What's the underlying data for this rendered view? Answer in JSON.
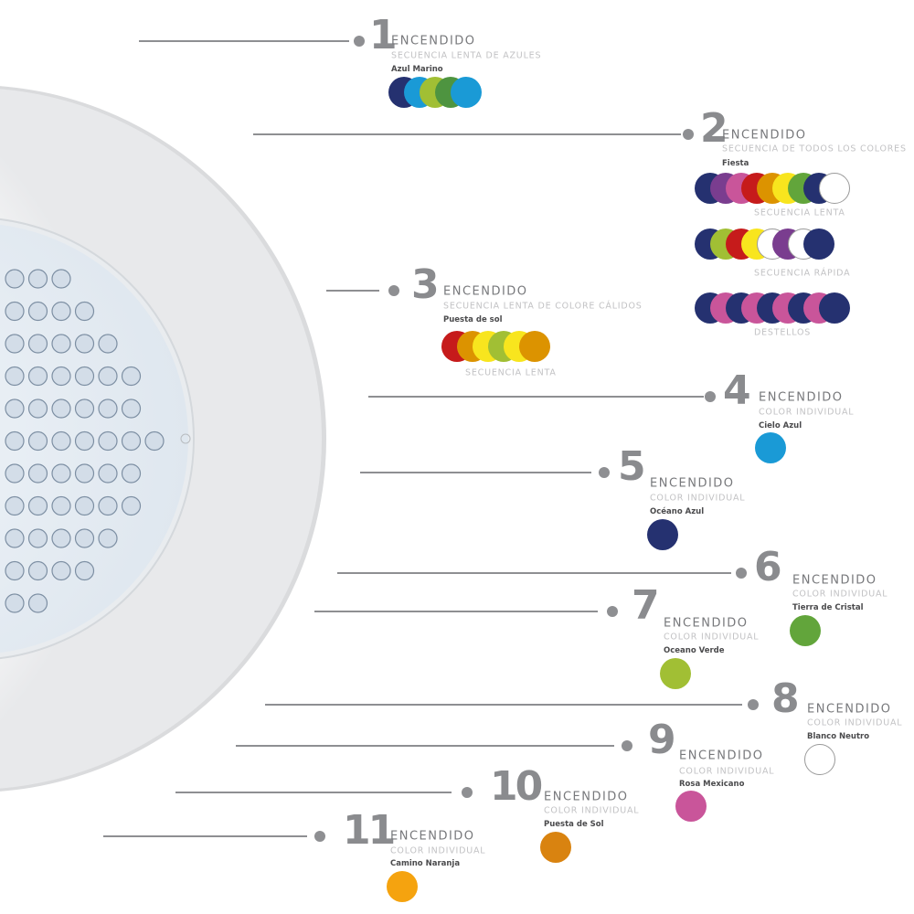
{
  "items": [
    {
      "number": "1",
      "title": "ENCENDIDO",
      "subtitle": "SECUENCIA LENTA DE AZULES",
      "name": "Azul Marino",
      "rows": [
        {
          "colors": [
            "#253170",
            "#1a9ad6",
            "#a1bf34",
            "#4e9440",
            "#1a9ad6"
          ],
          "label": ""
        }
      ]
    },
    {
      "number": "2",
      "title": "ENCENDIDO",
      "subtitle": "SECUENCIA DE TODOS LOS COLORES",
      "name": "Fiesta",
      "rows": [
        {
          "colors": [
            "#253170",
            "#7a3d8f",
            "#c9559a",
            "#c61b1b",
            "#dc9300",
            "#f8e51e",
            "#62a53b",
            "#253170",
            "#ffffff"
          ],
          "label": "SECUENCIA LENTA"
        },
        {
          "colors": [
            "#253170",
            "#a1bf34",
            "#c61b1b",
            "#f8e51e",
            "#ffffff",
            "#7a3d8f",
            "#ffffff",
            "#253170"
          ],
          "label": "SECUENCIA RÁPIDA"
        },
        {
          "colors": [
            "#253170",
            "#c9559a",
            "#253170",
            "#c9559a",
            "#253170",
            "#c9559a",
            "#253170",
            "#c9559a",
            "#253170"
          ],
          "label": "DESTELLOS"
        }
      ]
    },
    {
      "number": "3",
      "title": "ENCENDIDO",
      "subtitle": "SECUENCIA LENTA DE COLORE CÁLIDOS",
      "name": "Puesta de sol",
      "rows": [
        {
          "colors": [
            "#c61b1b",
            "#dc9300",
            "#f8e51e",
            "#a1bf34",
            "#f8e51e",
            "#dc9300"
          ],
          "label": "SECUENCIA LENTA"
        }
      ]
    },
    {
      "number": "4",
      "title": "ENCENDIDO",
      "subtitle": "COLOR INDIVIDUAL",
      "name": "Cielo Azul",
      "rows": [
        {
          "colors": [
            "#1a9ad6"
          ],
          "label": ""
        }
      ]
    },
    {
      "number": "5",
      "title": "ENCENDIDO",
      "subtitle": "COLOR INDIVIDUAL",
      "name": "Océano Azul",
      "rows": [
        {
          "colors": [
            "#253170"
          ],
          "label": ""
        }
      ]
    },
    {
      "number": "6",
      "title": "ENCENDIDO",
      "subtitle": "COLOR INDIVIDUAL",
      "name": "Tierra de Cristal",
      "rows": [
        {
          "colors": [
            "#62a53b"
          ],
          "label": ""
        }
      ]
    },
    {
      "number": "7",
      "title": "ENCENDIDO",
      "subtitle": "COLOR INDIVIDUAL",
      "name": "Oceano Verde",
      "rows": [
        {
          "colors": [
            "#a1bf34"
          ],
          "label": ""
        }
      ]
    },
    {
      "number": "8",
      "title": "ENCENDIDO",
      "subtitle": "COLOR INDIVIDUAL",
      "name": "Blanco Neutro",
      "rows": [
        {
          "colors": [
            "#ffffff"
          ],
          "label": ""
        }
      ]
    },
    {
      "number": "9",
      "title": "ENCENDIDO",
      "subtitle": "COLOR INDIVIDUAL",
      "name": "Rosa Mexicano",
      "rows": [
        {
          "colors": [
            "#c9559a"
          ],
          "label": ""
        }
      ]
    },
    {
      "number": "10",
      "title": "ENCENDIDO",
      "subtitle": "COLOR INDIVIDUAL",
      "name": "Puesta de Sol",
      "rows": [
        {
          "colors": [
            "#d98310"
          ],
          "label": ""
        }
      ]
    },
    {
      "number": "11",
      "title": "ENCENDIDO",
      "subtitle": "COLOR INDIVIDUAL",
      "name": "Camino Naranja",
      "rows": [
        {
          "colors": [
            "#f5a30f"
          ],
          "label": ""
        }
      ]
    }
  ],
  "colors": {
    "line": "#8e8f92",
    "numeral": "#8a8b8e"
  }
}
